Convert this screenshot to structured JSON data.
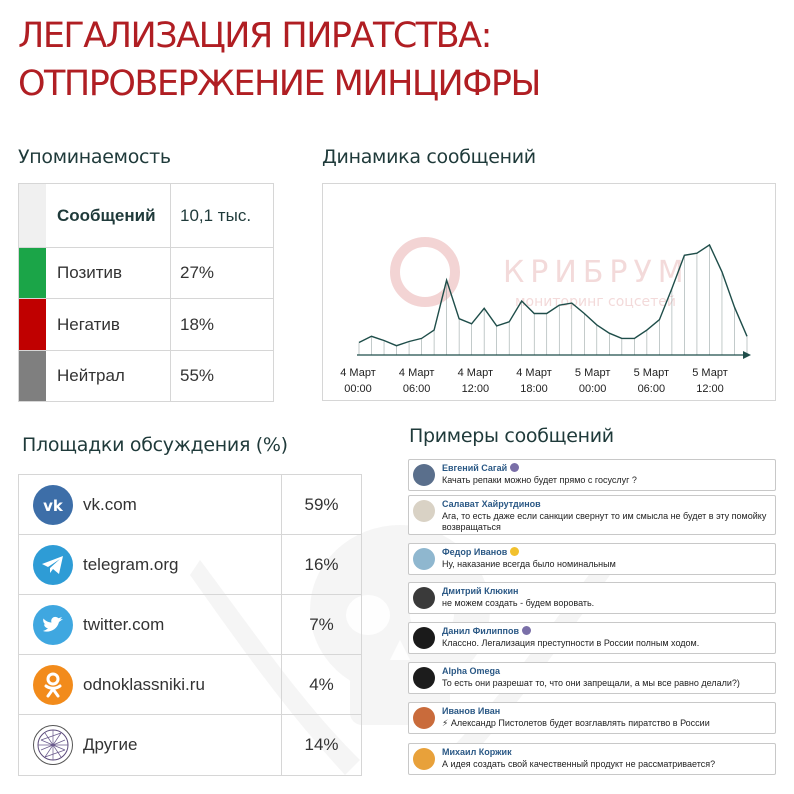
{
  "title": {
    "line1": "ЛЕГАЛИЗАЦИЯ ПИРАТСТВА:",
    "line2": "ОТПРОВЕРЖЕНИЕ МИНЦИФРЫ"
  },
  "mentions": {
    "title": "Упоминаемость",
    "header": {
      "label": "Сообщений",
      "value": "10,1 тыс."
    },
    "rows": [
      {
        "label": "Позитив",
        "value": "27%",
        "color": "#1ba548"
      },
      {
        "label": "Негатив",
        "value": "18%",
        "color": "#c00000"
      },
      {
        "label": "Нейтрал",
        "value": "55%",
        "color": "#7f7f7f"
      }
    ]
  },
  "dynamics": {
    "title": "Динамика сообщений",
    "watermark": {
      "brand": "КРИБРУМ",
      "tagline": "мониторинг соцсетей"
    },
    "chart_data": {
      "type": "area",
      "title": "Динамика сообщений",
      "x_ticks": [
        {
          "day": "4 Март",
          "time": "00:00"
        },
        {
          "day": "4 Март",
          "time": "06:00"
        },
        {
          "day": "4 Март",
          "time": "12:00"
        },
        {
          "day": "4 Март",
          "time": "18:00"
        },
        {
          "day": "5 Март",
          "time": "00:00"
        },
        {
          "day": "5 Март",
          "time": "06:00"
        },
        {
          "day": "5 Март",
          "time": "12:00"
        }
      ],
      "ylim": [
        0,
        130
      ],
      "values": [
        12,
        18,
        14,
        9,
        13,
        16,
        24,
        72,
        35,
        30,
        45,
        28,
        32,
        52,
        40,
        40,
        48,
        50,
        40,
        29,
        21,
        16,
        16,
        24,
        34,
        64,
        96,
        98,
        106,
        80,
        46,
        18
      ]
    },
    "accent": "#1f4e4a"
  },
  "platforms": {
    "title": "Площадки обсуждения (%)",
    "rows": [
      {
        "name": "vk.com",
        "value": "59%",
        "icon": "vk-icon",
        "color": "#3d6ea8"
      },
      {
        "name": "telegram.org",
        "value": "16%",
        "icon": "telegram-icon",
        "color": "#2e9cd6"
      },
      {
        "name": "twitter.com",
        "value": "7%",
        "icon": "twitter-icon",
        "color": "#3fa7e0"
      },
      {
        "name": "odnoklassniki.ru",
        "value": "4%",
        "icon": "odnoklassniki-icon",
        "color": "#f28b1b"
      },
      {
        "name": "Другие",
        "value": "14%",
        "icon": "network-icon",
        "color": "#ffffff"
      }
    ]
  },
  "examples": {
    "title": "Примеры сообщений",
    "messages": [
      {
        "author": "Евгений Сагай",
        "text": "Качать репаки можно будет прямо с госуслуг ?",
        "avatar_color": "#5a6f8c",
        "badge": "#7a6fa8"
      },
      {
        "author": "Салават Хайрутдинов",
        "text": "Ага, то есть даже если санкции свернут то им смысла не будет в эту помойку возвращаться",
        "avatar_color": "#d9d2c5",
        "badge": ""
      },
      {
        "author": "Федор Иванов",
        "text": "Ну, наказание всегда было номинальным",
        "avatar_color": "#8fb7cf",
        "badge": "#f2c12e"
      },
      {
        "author": "Дмитрий Клюкин",
        "text": "не можем создать - будем воровать.",
        "avatar_color": "#3a3a3a",
        "badge": ""
      },
      {
        "author": "Данил Филиппов",
        "text": "Классно. Легализация преступности в России полным ходом.",
        "avatar_color": "#1a1a1a",
        "badge": "#7a6fa8"
      },
      {
        "author": "Alpha Omega",
        "text": "То есть они разрешат то, что они запрещали, а мы все равно делали?)",
        "avatar_color": "#1c1c1c",
        "badge": ""
      },
      {
        "author": "Иванов Иван",
        "text": "⚡ Александр Пистолетов будет возглавлять пиратство в России",
        "avatar_color": "#c96b3b",
        "badge": ""
      },
      {
        "author": "Михаил Коржик",
        "text": "А идея создать свой качественный продукт не рассматривается?",
        "avatar_color": "#e8a13a",
        "badge": ""
      }
    ]
  }
}
